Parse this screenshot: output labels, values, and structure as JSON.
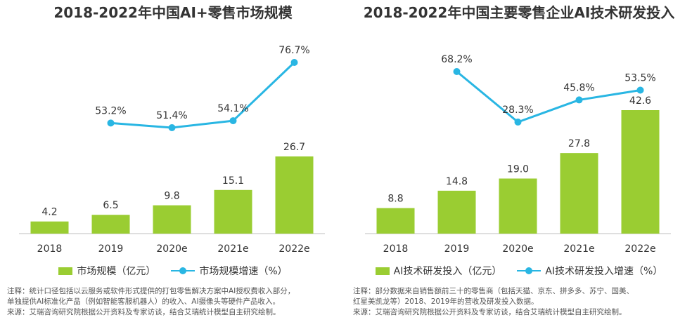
{
  "chart_data": [
    {
      "type": "bar",
      "title": "2018-2022年中国AI+零售市场规模",
      "categories": [
        "2018",
        "2019",
        "2020e",
        "2021e",
        "2022e"
      ],
      "series": [
        {
          "name": "市场规模（亿元）",
          "type": "bar",
          "values": [
            4.2,
            6.5,
            9.8,
            15.1,
            26.7
          ],
          "labels": [
            "4.2",
            "6.5",
            "9.8",
            "15.1",
            "26.7"
          ]
        },
        {
          "name": "市场规模增速（%）",
          "type": "line",
          "values": [
            null,
            53.2,
            51.4,
            54.1,
            76.7
          ],
          "labels": [
            "",
            "53.2%",
            "51.4%",
            "54.1%",
            "76.7%"
          ]
        }
      ],
      "legend_position": "bottom",
      "grid": false,
      "colors": {
        "bar": "#9acd32",
        "line": "#29b6e3"
      }
    },
    {
      "type": "bar",
      "title": "2018-2022年中国主要零售企业AI技术研发投入",
      "categories": [
        "2018",
        "2019",
        "2020e",
        "2021e",
        "2022e"
      ],
      "series": [
        {
          "name": "AI技术研发投入（亿元）",
          "type": "bar",
          "values": [
            8.8,
            14.8,
            19.0,
            27.8,
            42.6
          ],
          "labels": [
            "8.8",
            "14.8",
            "19.0",
            "27.8",
            "42.6"
          ]
        },
        {
          "name": "AI技术研发投入增速（%）",
          "type": "line",
          "values": [
            null,
            68.2,
            28.3,
            45.8,
            53.5
          ],
          "labels": [
            "",
            "68.2%",
            "28.3%",
            "45.8%",
            "53.5%"
          ]
        }
      ],
      "legend_position": "bottom",
      "grid": false,
      "colors": {
        "bar": "#9acd32",
        "line": "#29b6e3"
      }
    }
  ],
  "notes": {
    "left": [
      "注释：统计口径包括以云服务或软件形式提供的打包零售解决方案中AI授权费收入部分，",
      "单独提供AI标准化产品（例如智能客服机器人）的收入、AI摄像头等硬件产品收入。",
      "来源：艾瑞咨询研究院根据公开资料及专家访谈，结合艾瑞统计模型自主研究绘制。"
    ],
    "right": [
      "注释：部分数据来自销售额前三十的零售商（包括天猫、京东、拼多多、苏宁、国美、",
      "红星美凯龙等）2018、2019年的营收及研发投入数据。",
      "来源：艾瑞咨询研究院根据公开资料及专家访谈，结合艾瑞统计模型自主研究绘制。"
    ]
  }
}
